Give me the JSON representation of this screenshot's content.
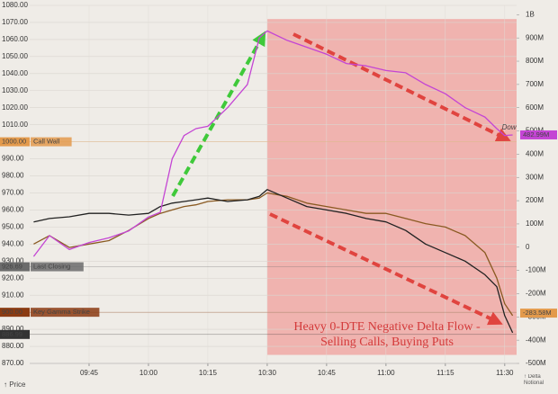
{
  "chart_data": {
    "type": "line",
    "x": [
      "09:31",
      "09:35",
      "09:40",
      "09:45",
      "09:50",
      "09:55",
      "10:00",
      "10:03",
      "10:06",
      "10:09",
      "10:12",
      "10:15",
      "10:20",
      "10:25",
      "10:28",
      "10:30",
      "10:35",
      "10:40",
      "10:45",
      "10:50",
      "10:55",
      "11:00",
      "11:05",
      "11:10",
      "11:15",
      "11:20",
      "11:25",
      "11:28",
      "11:30",
      "11:32"
    ],
    "xlim": [
      "09:30",
      "11:33"
    ],
    "xticks": [
      "09:45",
      "10:00",
      "10:15",
      "10:30",
      "10:45",
      "11:00",
      "11:15",
      "11:30"
    ],
    "ylim": [
      870,
      1080
    ],
    "yticks": [
      {
        "value": 870,
        "label": "870.00"
      },
      {
        "value": 880,
        "label": "880.00"
      },
      {
        "value": 890,
        "label": "890.00"
      },
      {
        "value": 900,
        "label": "900.00"
      },
      {
        "value": 910,
        "label": "910.00"
      },
      {
        "value": 920,
        "label": "920.00"
      },
      {
        "value": 930,
        "label": "930.00"
      },
      {
        "value": 940,
        "label": "940.00"
      },
      {
        "value": 950,
        "label": "950.00"
      },
      {
        "value": 960,
        "label": "960.00"
      },
      {
        "value": 970,
        "label": "970.00"
      },
      {
        "value": 980,
        "label": "980.00"
      },
      {
        "value": 990,
        "label": "990.00"
      },
      {
        "value": 1000,
        "label": "1000.00"
      },
      {
        "value": 1010,
        "label": "1010.00"
      },
      {
        "value": 1020,
        "label": "1020.00"
      },
      {
        "value": 1030,
        "label": "1030.00"
      },
      {
        "value": 1040,
        "label": "1040.00"
      },
      {
        "value": 1050,
        "label": "1050.00"
      },
      {
        "value": 1060,
        "label": "1060.00"
      },
      {
        "value": 1070,
        "label": "1070.00"
      },
      {
        "value": 1080,
        "label": "1080.00"
      }
    ],
    "y2lim": [
      -500,
      1040
    ],
    "y2ticks": [
      {
        "value": -500,
        "label": "-500M"
      },
      {
        "value": -400,
        "label": "-400M"
      },
      {
        "value": -300,
        "label": "-300M"
      },
      {
        "value": -200,
        "label": "-200M"
      },
      {
        "value": -100,
        "label": "-100M"
      },
      0,
      {
        "value": 100,
        "label": "100M"
      },
      {
        "value": 200,
        "label": "200M"
      },
      {
        "value": 300,
        "label": "300M"
      },
      {
        "value": 400,
        "label": "400M"
      },
      {
        "value": 500,
        "label": "500M"
      },
      {
        "value": 600,
        "label": "600M"
      },
      {
        "value": 700,
        "label": "700M"
      },
      {
        "value": 800,
        "label": "800M"
      },
      {
        "value": 900,
        "label": "900M"
      },
      {
        "value": 1000,
        "label": "1B"
      }
    ],
    "ylabel": "↑ Price",
    "y2label": "↑ Delta Notional",
    "grid": true,
    "series": [
      {
        "color": "#8a5a22",
        "values": [
          940,
          945,
          938,
          940,
          942,
          948,
          955,
          958,
          960,
          962,
          963,
          965,
          966,
          966,
          967,
          970,
          968,
          964,
          962,
          960,
          958,
          958,
          955,
          952,
          950,
          945,
          935,
          920,
          905,
          898
        ]
      },
      {
        "color": "#222222",
        "values": [
          953,
          955,
          956,
          958,
          958,
          957,
          958,
          962,
          964,
          965,
          966,
          967,
          965,
          966,
          968,
          972,
          967,
          962,
          960,
          958,
          955,
          953,
          948,
          940,
          935,
          930,
          922,
          915,
          898,
          888
        ]
      },
      {
        "name": "Dow",
        "color": "#c445d4",
        "axis": "y2",
        "values": [
          -40,
          50,
          -10,
          20,
          40,
          70,
          130,
          150,
          380,
          480,
          510,
          520,
          600,
          700,
          900,
          930,
          890,
          860,
          830,
          790,
          780,
          760,
          750,
          700,
          660,
          600,
          560,
          510,
          480,
          483
        ]
      }
    ],
    "shade": {
      "from": "10:30",
      "to": "11:33",
      "y": [
        875,
        1072
      ],
      "color": "#f0a9a4"
    },
    "reference_lines": [
      {
        "value": 1000,
        "label": "1000.00",
        "name": "Call Wall",
        "color": "#e39a4c"
      },
      {
        "value": 926.69,
        "label": "926.69",
        "name": "Last Closing",
        "color": "#6b6b6b"
      },
      {
        "value": 900,
        "label": "900.00",
        "name": "Key Gamma Strike",
        "color": "#8b3b12"
      },
      {
        "value": 886.99,
        "label": "886.99",
        "color": "#333333"
      }
    ],
    "y2_tags": [
      {
        "value": 482.99,
        "label": "482.99M",
        "color": "#c445d4"
      },
      {
        "value": -283.58,
        "label": "-283.58M",
        "color": "#e39a4c"
      }
    ],
    "annotation": [
      "Heavy 0-DTE Negative Delta Flow -",
      "Selling Calls, Buying Puts"
    ]
  }
}
